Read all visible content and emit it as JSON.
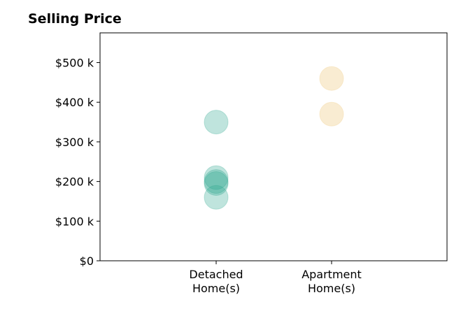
{
  "chart_data": {
    "type": "scatter",
    "title": "Selling Price",
    "xlabel": "",
    "ylabel": "",
    "categories": [
      [
        "Detached",
        "Home(s)"
      ],
      [
        "Apartment",
        "Home(s)"
      ]
    ],
    "ylim": [
      0,
      575
    ],
    "yticks": [
      0,
      100,
      200,
      300,
      400,
      500
    ],
    "ytick_labels": [
      "$0",
      "$100 k",
      "$200 k",
      "$300 k",
      "$400 k",
      "$500 k"
    ],
    "grid": false,
    "series": [
      {
        "category": "Detached Home(s)",
        "color": "#2ca58d",
        "opacity": 0.3,
        "values": [
          350,
          210,
          200,
          195,
          160
        ]
      },
      {
        "category": "Apartment Home(s)",
        "color": "#f2d49b",
        "opacity": 0.45,
        "values": [
          460,
          370
        ]
      }
    ]
  }
}
